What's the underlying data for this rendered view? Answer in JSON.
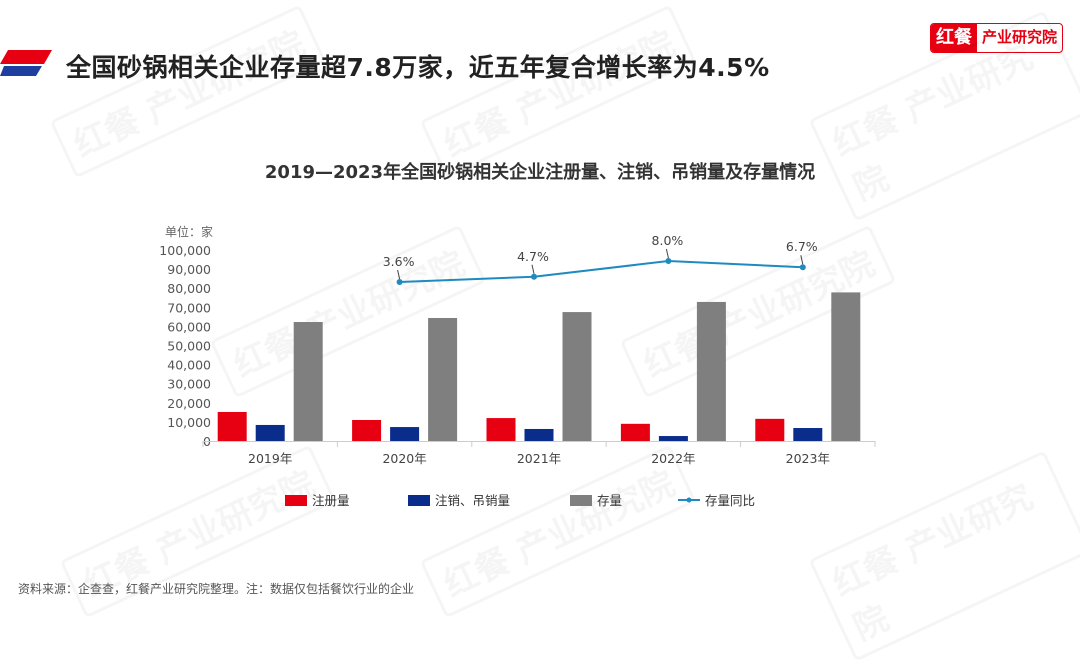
{
  "header": {
    "title": "全国砂锅相关企业存量超7.8万家，近五年复合增长率为4.5%",
    "logo_left": "红餐",
    "logo_right": "产业研究院"
  },
  "watermark": "红餐 产业研究院",
  "chart_data": {
    "type": "bar",
    "title": "2019—2023年全国砂锅相关企业注册量、注销、吊销量及存量情况",
    "unit_label": "单位：家",
    "categories": [
      "2019年",
      "2020年",
      "2021年",
      "2022年",
      "2023年"
    ],
    "ylim": [
      0,
      100000
    ],
    "yticks": [
      "0",
      "10,000",
      "20,000",
      "30,000",
      "40,000",
      "50,000",
      "60,000",
      "70,000",
      "80,000",
      "90,000",
      "100,000"
    ],
    "series": [
      {
        "name": "注册量",
        "color": "#e60012",
        "values": [
          15200,
          11000,
          12000,
          9000,
          11600
        ]
      },
      {
        "name": "注销、吊销量",
        "color": "#0a2d8c",
        "values": [
          8400,
          7300,
          6300,
          2600,
          6800
        ]
      },
      {
        "name": "存量",
        "color": "#7f7f7f",
        "values": [
          62300,
          64400,
          67500,
          72800,
          77800
        ]
      }
    ],
    "line_series": {
      "name": "存量同比",
      "color": "#1f8ac0",
      "values": [
        null,
        3.6,
        4.7,
        8.0,
        6.7
      ],
      "labels": [
        "",
        "3.6%",
        "4.7%",
        "8.0%",
        "6.7%"
      ]
    },
    "grid": false,
    "legend": "bottom"
  },
  "source": "资料来源：企查查，红餐产业研究院整理。注：数据仅包括餐饮行业的企业"
}
